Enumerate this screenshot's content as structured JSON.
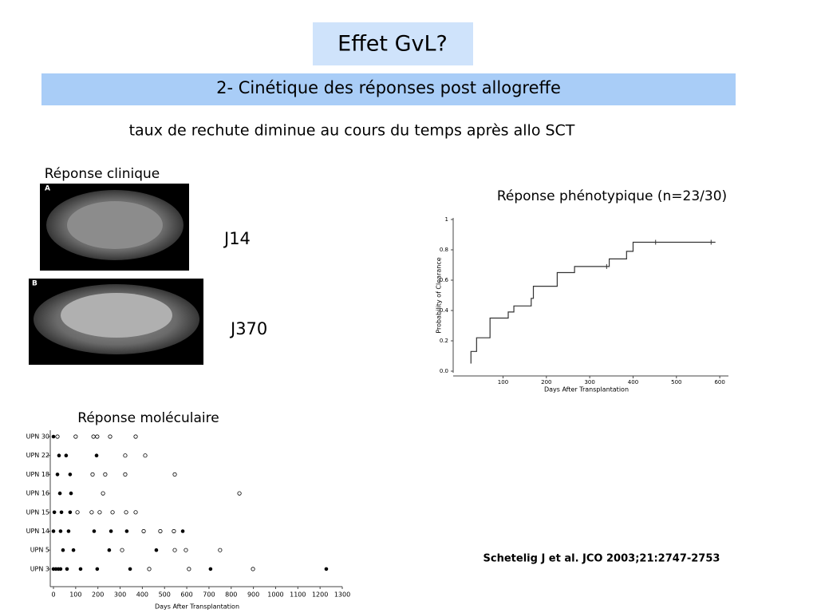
{
  "title": "Effet GvL?",
  "subtitle": "2- Cinétique des réponses post allogreffe",
  "bullet": "taux de rechute diminue au cours du temps après allo SCT",
  "clinical": {
    "label": "Réponse clinique",
    "image_a": "A",
    "image_b": "B",
    "day_a": "J14",
    "day_b": "J370"
  },
  "citation": "Schetelig J et al. JCO 2003;21:2747-2753",
  "chart_data": [
    {
      "type": "step",
      "title": "Réponse phénotypique (n=23/30)",
      "x_label": "Days After Transplantation",
      "y_label": "Probability of Clearance",
      "x": [
        26,
        26,
        39,
        70,
        112,
        125,
        165,
        170,
        225,
        265,
        345,
        385,
        400,
        590
      ],
      "values": [
        0.05,
        0.13,
        0.22,
        0.35,
        0.39,
        0.43,
        0.48,
        0.56,
        0.65,
        0.69,
        0.74,
        0.79,
        0.85,
        0.85
      ],
      "censored_x": [
        339,
        452,
        580
      ],
      "censored_values": [
        0.69,
        0.85,
        0.85
      ],
      "color": "#333",
      "xlim": [
        -15,
        620
      ],
      "ylim": [
        0,
        1
      ],
      "xticks": [
        100,
        200,
        300,
        400,
        500,
        600
      ],
      "yticks": [
        {
          "value": 0,
          "label": "0.0"
        },
        0.2,
        0.4,
        0.6,
        0.8,
        1
      ]
    },
    {
      "type": "dots",
      "title": "Réponse moléculaire",
      "x_label": "Days After Transplantation",
      "xlim": [
        0,
        1300
      ],
      "xticks": [
        0,
        100,
        200,
        300,
        400,
        500,
        600,
        700,
        800,
        900,
        1000,
        1100,
        1200,
        1300
      ],
      "rows": [
        {
          "label": "UPN 30",
          "filled": [
            0
          ],
          "open": [
            18,
            100,
            180,
            197,
            255,
            370
          ]
        },
        {
          "label": "UPN 22",
          "filled": [
            25,
            57,
            194
          ],
          "open": [
            323,
            413
          ]
        },
        {
          "label": "UPN 18",
          "filled": [
            18,
            75
          ],
          "open": [
            176,
            233,
            323,
            546
          ]
        },
        {
          "label": "UPN 16",
          "filled": [
            29,
            79
          ],
          "open": [
            223,
            837
          ]
        },
        {
          "label": "UPN 15",
          "filled": [
            4,
            36,
            75
          ],
          "open": [
            108,
            172,
            208,
            266,
            327,
            370
          ]
        },
        {
          "label": "UPN 14",
          "filled": [
            0,
            32,
            68,
            183,
            259,
            330,
            582
          ],
          "open": [
            406,
            481,
            542
          ]
        },
        {
          "label": "UPN 5",
          "filled": [
            43,
            90,
            251,
            463
          ],
          "open": [
            309,
            546,
            596,
            750
          ]
        },
        {
          "label": "UPN 3",
          "filled": [
            0,
            11,
            22,
            32,
            61,
            122,
            197,
            345,
            707,
            1228
          ],
          "open": [
            431,
            610,
            898
          ]
        }
      ]
    }
  ]
}
